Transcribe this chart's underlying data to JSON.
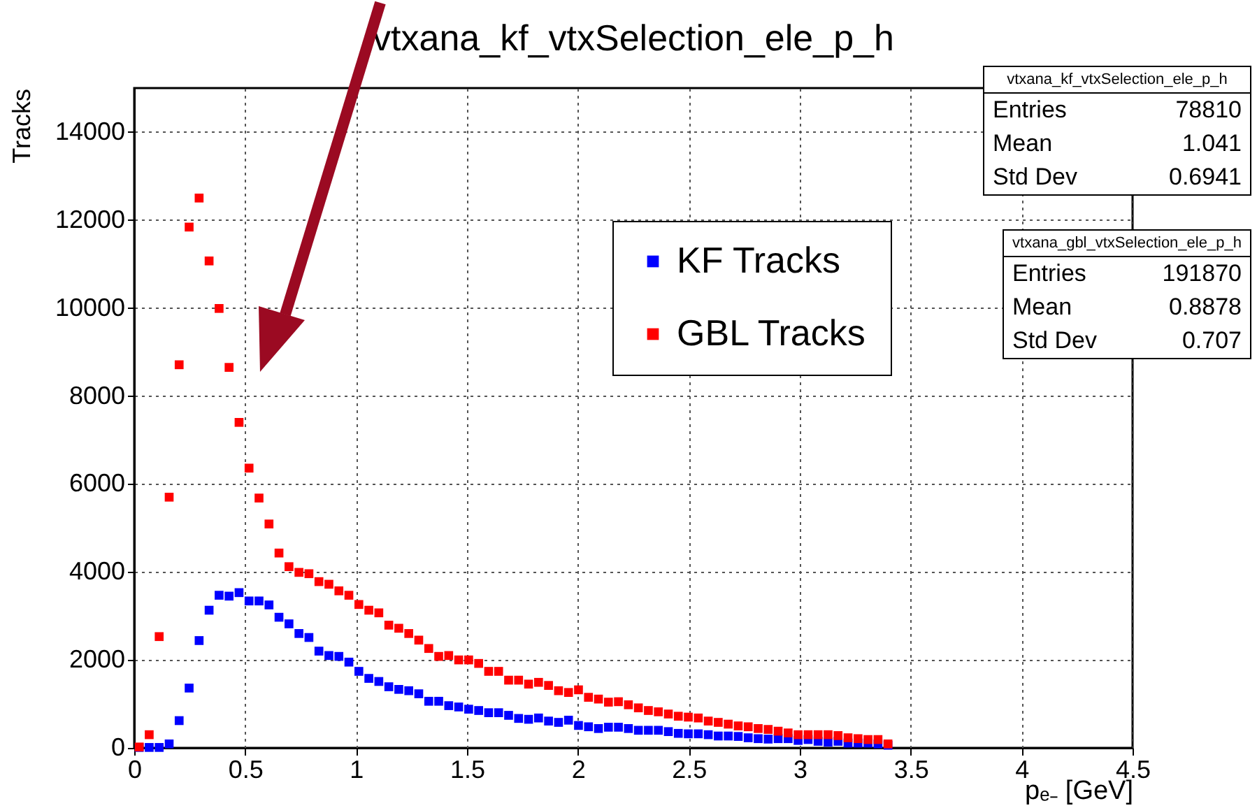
{
  "chart_data": {
    "type": "scatter",
    "title": "vtxana_kf_vtxSelection_ele_p_h",
    "xlabel": "pₑ₋ [GeV]",
    "ylabel": "Tracks",
    "x": [
      0.0225,
      0.0675,
      0.1125,
      0.1575,
      0.2025,
      0.2475,
      0.2925,
      0.3375,
      0.3825,
      0.4275,
      0.4725,
      0.5175,
      0.5625,
      0.6075,
      0.6525,
      0.6975,
      0.7425,
      0.7875,
      0.8325,
      0.8775,
      0.9225,
      0.9675,
      1.0125,
      1.0575,
      1.1025,
      1.1475,
      1.1925,
      1.2375,
      1.2825,
      1.3275,
      1.3725,
      1.4175,
      1.4625,
      1.5075,
      1.5525,
      1.5975,
      1.6425,
      1.6875,
      1.7325,
      1.7775,
      1.8225,
      1.8675,
      1.9125,
      1.9575,
      2.0025,
      2.0475,
      2.0925,
      2.1375,
      2.1825,
      2.2275,
      2.2725,
      2.3175,
      2.3625,
      2.4075,
      2.4525,
      2.4975,
      2.5425,
      2.5875,
      2.6325,
      2.6775,
      2.7225,
      2.7675,
      2.8125,
      2.8575,
      2.9025,
      2.9475,
      2.9925,
      3.0375,
      3.0825,
      3.1275,
      3.1725,
      3.2175,
      3.2625,
      3.3075,
      3.3525,
      3.3975
    ],
    "series": [
      {
        "name": "KF Tracks",
        "color": "#0000ff",
        "values": [
          10,
          10,
          10,
          90,
          620,
          1360,
          2440,
          3130,
          3470,
          3450,
          3530,
          3340,
          3340,
          3250,
          2970,
          2820,
          2600,
          2510,
          2200,
          2100,
          2080,
          1950,
          1740,
          1580,
          1510,
          1390,
          1330,
          1300,
          1230,
          1060,
          1060,
          960,
          930,
          880,
          850,
          800,
          800,
          740,
          670,
          650,
          680,
          610,
          580,
          630,
          510,
          480,
          440,
          470,
          470,
          440,
          400,
          400,
          400,
          370,
          330,
          320,
          320,
          300,
          270,
          270,
          260,
          230,
          210,
          200,
          210,
          210,
          170,
          190,
          150,
          130,
          150,
          110,
          110,
          110,
          90,
          60
        ]
      },
      {
        "name": "GBL Tracks",
        "color": "#ff0000",
        "values": [
          20,
          300,
          2530,
          5700,
          8710,
          11840,
          12500,
          11070,
          9990,
          8650,
          7400,
          6360,
          5680,
          5090,
          4430,
          4120,
          3990,
          3960,
          3780,
          3720,
          3570,
          3470,
          3260,
          3130,
          3070,
          2790,
          2720,
          2600,
          2450,
          2260,
          2080,
          2100,
          2000,
          2000,
          1920,
          1740,
          1740,
          1540,
          1540,
          1450,
          1490,
          1420,
          1300,
          1260,
          1320,
          1150,
          1110,
          1040,
          1050,
          980,
          910,
          850,
          820,
          770,
          720,
          700,
          680,
          610,
          580,
          540,
          500,
          480,
          440,
          420,
          380,
          340,
          300,
          300,
          300,
          300,
          280,
          230,
          210,
          190,
          190,
          90
        ]
      }
    ],
    "xlim": [
      0,
      4.5
    ],
    "xticks": [
      0,
      0.5,
      1,
      1.5,
      2,
      2.5,
      3,
      3.5,
      4,
      4.5
    ],
    "ylim": [
      0,
      15000
    ],
    "yticks": [
      0,
      2000,
      4000,
      6000,
      8000,
      10000,
      12000,
      14000
    ],
    "grid": true,
    "legend": "top right",
    "marker": "square",
    "annotations": [
      "vtxana_kf_vtxSelection_ele_p_h",
      "Entries",
      "78810",
      "Mean",
      "1.041",
      "Std Dev",
      "0.6941",
      "vtxana_gbl_vtxSelection_ele_p_h",
      "Entries",
      "191870",
      "Mean",
      "0.8878",
      "Std Dev",
      "0.707"
    ]
  }
}
